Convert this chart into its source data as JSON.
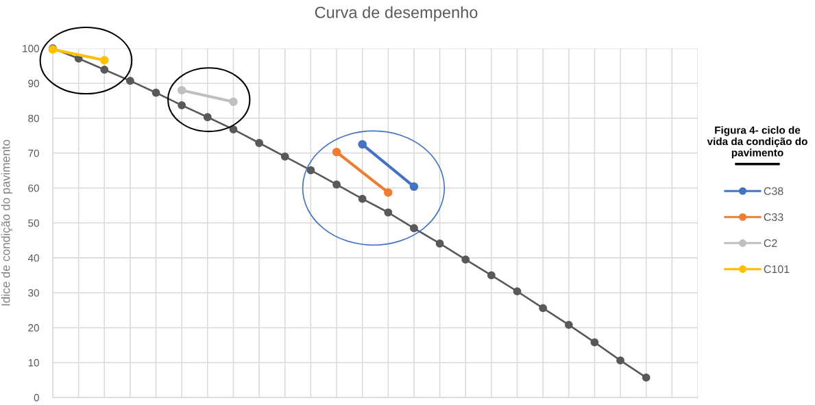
{
  "chart_data": {
    "type": "line",
    "title": "Curva de desempenho",
    "ylabel": "Idice de condição do pavimento",
    "legend_title": "Figura 4- ciclo de vida da condição do pavimento",
    "categories": [
      null,
      null,
      null,
      null,
      null,
      null,
      null,
      null,
      null,
      null,
      null,
      null,
      null,
      null,
      null,
      null,
      null,
      null,
      null,
      null,
      null,
      null,
      null,
      null,
      null,
      null
    ],
    "ylim": [
      0,
      100
    ],
    "yticks": [
      0,
      10,
      20,
      30,
      40,
      50,
      60,
      70,
      80,
      90,
      100
    ],
    "tick_labels": "y",
    "grid": true,
    "legend": "right",
    "marker": "circle",
    "line_style": "solid",
    "series": [
      {
        "color": "#595959",
        "values": [
          100,
          97.1,
          93.9,
          90.7,
          87.3,
          83.7,
          80.3,
          76.8,
          72.9,
          69.0,
          65.1,
          61.0,
          56.9,
          53.0,
          48.5,
          44.1,
          39.5,
          35.0,
          30.4,
          25.6,
          20.8,
          15.8,
          10.6,
          5.7,
          null,
          null
        ]
      },
      {
        "name": "C38",
        "color": "#4472c4",
        "values": [
          null,
          null,
          null,
          null,
          null,
          null,
          null,
          null,
          null,
          null,
          null,
          null,
          72.5,
          null,
          60.4,
          null,
          null,
          null,
          null,
          null,
          null,
          null,
          null,
          null,
          null,
          null
        ]
      },
      {
        "name": "C33",
        "color": "#ed7d31",
        "values": [
          null,
          null,
          null,
          null,
          null,
          null,
          null,
          null,
          null,
          null,
          null,
          70.3,
          null,
          58.7,
          null,
          null,
          null,
          null,
          null,
          null,
          null,
          null,
          null,
          null,
          null,
          null
        ]
      },
      {
        "name": "C2",
        "color": "#bfbfbf",
        "values": [
          null,
          null,
          null,
          null,
          null,
          88.0,
          null,
          84.7,
          null,
          null,
          null,
          null,
          null,
          null,
          null,
          null,
          null,
          null,
          null,
          null,
          null,
          null,
          null,
          null,
          null,
          null
        ]
      },
      {
        "name": "C101",
        "color": "#ffc000",
        "values": [
          99.7,
          null,
          96.6,
          null,
          null,
          null,
          null,
          null,
          null,
          null,
          null,
          null,
          null,
          null,
          null,
          null,
          null,
          null,
          null,
          null,
          null,
          null,
          null,
          null,
          null,
          null
        ]
      }
    ]
  }
}
